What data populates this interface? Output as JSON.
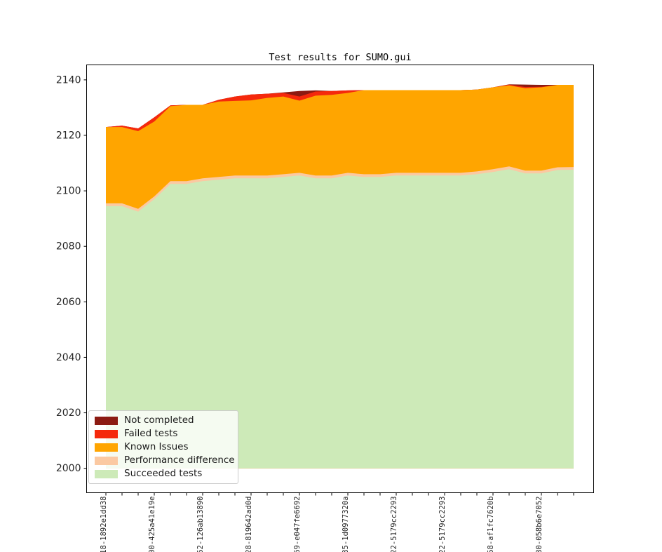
{
  "title": "Test results for SUMO.gui",
  "colors": {
    "not_completed": "#8c1b12",
    "failed": "#f5290c",
    "known_issues": "#ffa500",
    "performance": "#fbc9a2",
    "succeeded": "#cdeab8",
    "frame": "#000000",
    "tick_text": "#262626",
    "legend_border": "#cccccc"
  },
  "legend": {
    "items": [
      {
        "label": "Not completed",
        "color_key": "not_completed"
      },
      {
        "label": "Failed tests",
        "color_key": "failed"
      },
      {
        "label": "Known Issues",
        "color_key": "known_issues"
      },
      {
        "label": "Performance difference",
        "color_key": "performance"
      },
      {
        "label": "Succeeded tests",
        "color_key": "succeeded"
      }
    ]
  },
  "chart_data": {
    "type": "area",
    "stacked": true,
    "title": "Test results for SUMO.gui",
    "xlabel": "",
    "ylabel": "",
    "baseline": 2000,
    "ylim": [
      1991.2,
      2145.4
    ],
    "yticks": [
      2000,
      2020,
      2040,
      2060,
      2080,
      2100,
      2120,
      2140
    ],
    "ytick_labels": [
      "2000",
      "2020",
      "2040",
      "2060",
      "2080",
      "2100",
      "2120",
      "2140"
    ],
    "x_count": 30,
    "xtick_label_every": 3,
    "xtick_labels": [
      "18-1892e1dd38",
      "00-425a41e19e",
      "52-126ab13890",
      "28-819642ad0d",
      "69-e047fe6692",
      "35-1d0977320a",
      "22-5179cc2293",
      "22-5179cc2293",
      "058-af1fc7620b",
      "30-058b6e7052"
    ],
    "legend_position": "lower left",
    "grid": false,
    "series_tops": {
      "succeeded": [
        2094.5,
        2094.5,
        2092.5,
        2097,
        2102.5,
        2102.5,
        2103.5,
        2104,
        2104.5,
        2104.5,
        2104.5,
        2105,
        2105.5,
        2104.5,
        2104.5,
        2105.5,
        2105,
        2105,
        2105.5,
        2105.5,
        2105.5,
        2105.5,
        2105.5,
        2106,
        2106.8,
        2107.8,
        2106.3,
        2106.3,
        2107.5,
        2107.6
      ],
      "performance": [
        2095.5,
        2095.5,
        2093.5,
        2098,
        2103.5,
        2103.5,
        2104.5,
        2105,
        2105.5,
        2105.5,
        2105.5,
        2106,
        2106.5,
        2105.5,
        2105.5,
        2106.5,
        2106,
        2106,
        2106.5,
        2106.5,
        2106.5,
        2106.5,
        2106.5,
        2107,
        2107.8,
        2108.8,
        2107.3,
        2107.3,
        2108.5,
        2108.6
      ],
      "known_issues": [
        2123,
        2123,
        2121.5,
        2125,
        2130.5,
        2131,
        2131,
        2132.2,
        2132.4,
        2132.6,
        2133.5,
        2134,
        2132.5,
        2134.3,
        2134.6,
        2135.3,
        2136.3,
        2136.3,
        2136.3,
        2136.3,
        2136.3,
        2136.3,
        2136.3,
        2136.5,
        2137.3,
        2138,
        2137,
        2137.3,
        2138.2,
        2138.2
      ],
      "failed": [
        2123,
        2123.5,
        2122.5,
        2126.5,
        2130.8,
        2131,
        2131,
        2132.8,
        2134,
        2134.7,
        2135,
        2135.3,
        2134,
        2135.8,
        2136,
        2136.2,
        2136.3,
        2136.3,
        2136.3,
        2136.3,
        2136.3,
        2136.3,
        2136.3,
        2136.5,
        2137.3,
        2138.3,
        2137.4,
        2137.5,
        2138.2,
        2138.2
      ],
      "not_completed": [
        2123,
        2123.5,
        2122.5,
        2126.5,
        2130.8,
        2131,
        2131,
        2132.8,
        2134,
        2134.7,
        2135,
        2135.5,
        2136,
        2136.2,
        2136,
        2136.2,
        2136.3,
        2136.3,
        2136.3,
        2136.3,
        2136.3,
        2136.3,
        2136.3,
        2136.5,
        2137.3,
        2138.4,
        2138.3,
        2138.2,
        2138.2,
        2138.2
      ]
    }
  }
}
